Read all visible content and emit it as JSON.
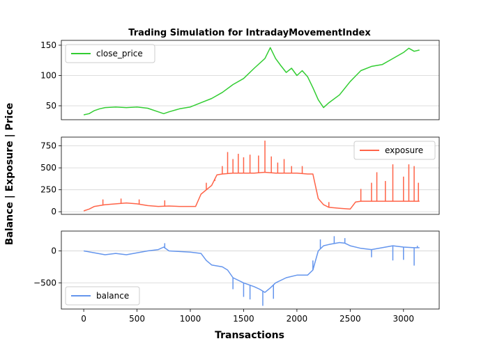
{
  "chart_data": {
    "type": "line",
    "title": "Trading Simulation for IntradayMovementIndex",
    "xlabel": "Transactions",
    "ylabel": "Balance | Exposure | Price",
    "xlim": [
      -210,
      3335
    ],
    "x_ticks": [
      0,
      500,
      1000,
      1500,
      2000,
      2500,
      3000
    ],
    "grid": "horizontal",
    "panels": [
      {
        "name": "close_price",
        "color": "#32cd32",
        "legend": "top-left",
        "ylim": [
          27,
          158
        ],
        "y_ticks": [
          50,
          100,
          150
        ],
        "points": [
          [
            0,
            35
          ],
          [
            50,
            37
          ],
          [
            100,
            42
          ],
          [
            150,
            45
          ],
          [
            200,
            47
          ],
          [
            300,
            48
          ],
          [
            400,
            47
          ],
          [
            500,
            48
          ],
          [
            600,
            46
          ],
          [
            700,
            40
          ],
          [
            750,
            37
          ],
          [
            800,
            40
          ],
          [
            900,
            45
          ],
          [
            1000,
            48
          ],
          [
            1100,
            55
          ],
          [
            1200,
            62
          ],
          [
            1300,
            72
          ],
          [
            1400,
            85
          ],
          [
            1500,
            95
          ],
          [
            1600,
            112
          ],
          [
            1700,
            128
          ],
          [
            1750,
            146
          ],
          [
            1800,
            128
          ],
          [
            1850,
            116
          ],
          [
            1900,
            105
          ],
          [
            1950,
            112
          ],
          [
            2000,
            100
          ],
          [
            2050,
            108
          ],
          [
            2100,
            98
          ],
          [
            2150,
            80
          ],
          [
            2200,
            60
          ],
          [
            2250,
            47
          ],
          [
            2300,
            55
          ],
          [
            2400,
            68
          ],
          [
            2500,
            90
          ],
          [
            2600,
            108
          ],
          [
            2700,
            115
          ],
          [
            2800,
            118
          ],
          [
            2900,
            128
          ],
          [
            3000,
            138
          ],
          [
            3050,
            145
          ],
          [
            3100,
            140
          ],
          [
            3150,
            142
          ]
        ]
      },
      {
        "name": "exposure",
        "color": "#ff6347",
        "legend": "top-right",
        "ylim": [
          -30,
          850
        ],
        "y_ticks": [
          0,
          250,
          500,
          750
        ],
        "points": [
          [
            0,
            10
          ],
          [
            50,
            30
          ],
          [
            100,
            60
          ],
          [
            200,
            80
          ],
          [
            300,
            90
          ],
          [
            400,
            100
          ],
          [
            500,
            90
          ],
          [
            600,
            70
          ],
          [
            700,
            60
          ],
          [
            800,
            65
          ],
          [
            900,
            60
          ],
          [
            1000,
            60
          ],
          [
            1050,
            60
          ],
          [
            1100,
            200
          ],
          [
            1200,
            300
          ],
          [
            1250,
            420
          ],
          [
            1300,
            430
          ],
          [
            1400,
            440
          ],
          [
            1500,
            440
          ],
          [
            1600,
            440
          ],
          [
            1700,
            450
          ],
          [
            1800,
            440
          ],
          [
            1900,
            440
          ],
          [
            2000,
            440
          ],
          [
            2100,
            430
          ],
          [
            2150,
            430
          ],
          [
            2200,
            150
          ],
          [
            2250,
            80
          ],
          [
            2300,
            50
          ],
          [
            2400,
            40
          ],
          [
            2500,
            30
          ],
          [
            2550,
            110
          ],
          [
            2600,
            120
          ],
          [
            2700,
            120
          ],
          [
            2800,
            120
          ],
          [
            2900,
            120
          ],
          [
            3000,
            120
          ],
          [
            3100,
            120
          ],
          [
            3150,
            120
          ]
        ],
        "spikes": [
          [
            180,
            140
          ],
          [
            350,
            150
          ],
          [
            520,
            140
          ],
          [
            760,
            130
          ],
          [
            1150,
            330
          ],
          [
            1230,
            350
          ],
          [
            1300,
            520
          ],
          [
            1350,
            680
          ],
          [
            1400,
            600
          ],
          [
            1450,
            660
          ],
          [
            1500,
            620
          ],
          [
            1560,
            650
          ],
          [
            1640,
            640
          ],
          [
            1700,
            810
          ],
          [
            1760,
            630
          ],
          [
            1820,
            560
          ],
          [
            1880,
            600
          ],
          [
            1950,
            520
          ],
          [
            2050,
            520
          ],
          [
            2300,
            110
          ],
          [
            2600,
            260
          ],
          [
            2700,
            330
          ],
          [
            2750,
            450
          ],
          [
            2830,
            350
          ],
          [
            2900,
            540
          ],
          [
            3000,
            400
          ],
          [
            3050,
            540
          ],
          [
            3100,
            520
          ],
          [
            3140,
            330
          ]
        ]
      },
      {
        "name": "balance",
        "color": "#6495ed",
        "legend": "bottom-left",
        "ylim": [
          -910,
          310
        ],
        "y_ticks": [
          0,
          -500
        ],
        "points": [
          [
            0,
            0
          ],
          [
            100,
            -30
          ],
          [
            200,
            -60
          ],
          [
            300,
            -40
          ],
          [
            400,
            -60
          ],
          [
            500,
            -30
          ],
          [
            600,
            0
          ],
          [
            700,
            20
          ],
          [
            750,
            60
          ],
          [
            800,
            0
          ],
          [
            900,
            -10
          ],
          [
            1000,
            -20
          ],
          [
            1100,
            -40
          ],
          [
            1150,
            -150
          ],
          [
            1200,
            -220
          ],
          [
            1300,
            -250
          ],
          [
            1350,
            -300
          ],
          [
            1400,
            -420
          ],
          [
            1500,
            -500
          ],
          [
            1600,
            -560
          ],
          [
            1650,
            -600
          ],
          [
            1700,
            -650
          ],
          [
            1750,
            -580
          ],
          [
            1800,
            -500
          ],
          [
            1900,
            -420
          ],
          [
            2000,
            -380
          ],
          [
            2100,
            -380
          ],
          [
            2150,
            -300
          ],
          [
            2200,
            0
          ],
          [
            2250,
            80
          ],
          [
            2300,
            100
          ],
          [
            2400,
            130
          ],
          [
            2450,
            120
          ],
          [
            2500,
            80
          ],
          [
            2600,
            40
          ],
          [
            2700,
            20
          ],
          [
            2800,
            50
          ],
          [
            2900,
            80
          ],
          [
            3000,
            60
          ],
          [
            3100,
            50
          ],
          [
            3150,
            50
          ]
        ],
        "spikes": [
          [
            760,
            120
          ],
          [
            1400,
            -600
          ],
          [
            1500,
            -720
          ],
          [
            1560,
            -760
          ],
          [
            1680,
            -860
          ],
          [
            1780,
            -750
          ],
          [
            2150,
            -150
          ],
          [
            2220,
            180
          ],
          [
            2350,
            230
          ],
          [
            2450,
            200
          ],
          [
            2700,
            -100
          ],
          [
            2900,
            -150
          ],
          [
            3000,
            -140
          ],
          [
            3100,
            -230
          ],
          [
            3130,
            80
          ]
        ]
      }
    ]
  }
}
